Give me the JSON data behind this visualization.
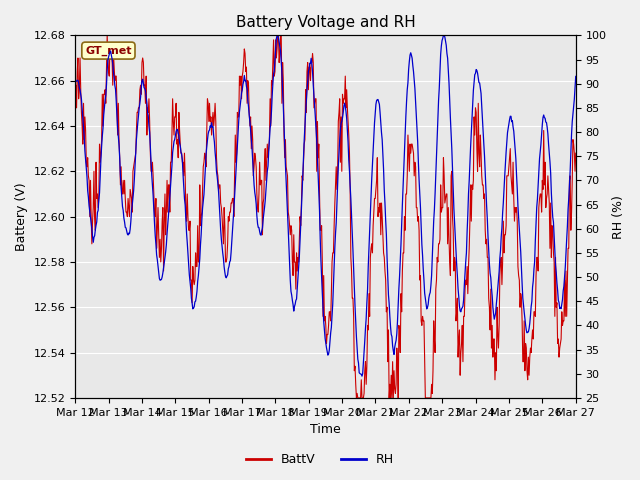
{
  "title": "Battery Voltage and RH",
  "xlabel": "Time",
  "ylabel_left": "Battery (V)",
  "ylabel_right": "RH (%)",
  "annotation": "GT_met",
  "ylim_left": [
    12.52,
    12.68
  ],
  "ylim_right": [
    25,
    100
  ],
  "yticks_left": [
    12.52,
    12.54,
    12.56,
    12.58,
    12.6,
    12.62,
    12.64,
    12.66,
    12.68
  ],
  "yticks_right": [
    25,
    30,
    35,
    40,
    45,
    50,
    55,
    60,
    65,
    70,
    75,
    80,
    85,
    90,
    95,
    100
  ],
  "xtick_labels": [
    "Mar 12",
    "Mar 13",
    "Mar 14",
    "Mar 15",
    "Mar 16",
    "Mar 17",
    "Mar 18",
    "Mar 19",
    "Mar 20",
    "Mar 21",
    "Mar 22",
    "Mar 23",
    "Mar 24",
    "Mar 25",
    "Mar 26",
    "Mar 27"
  ],
  "color_batt": "#cc0000",
  "color_rh": "#0000cc",
  "fig_facecolor": "#f0f0f0",
  "ax_facecolor": "#e8e8e8",
  "legend_labels": [
    "BattV",
    "RH"
  ],
  "title_fontsize": 11,
  "axis_fontsize": 9,
  "tick_fontsize": 8,
  "seed": 7,
  "n_days": 15,
  "pts_per_day": 48
}
